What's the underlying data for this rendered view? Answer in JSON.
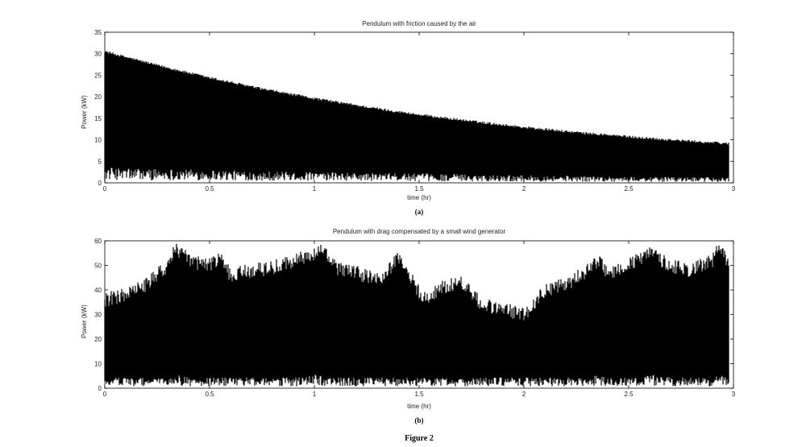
{
  "figure_caption": "Figure 2",
  "chart_data": [
    {
      "type": "line",
      "panel": "(a)",
      "title": "Pendulum with friction caused by the air",
      "xlabel": "time (hr)",
      "ylabel": "Power (kW)",
      "xlim": [
        0,
        3
      ],
      "ylim": [
        0,
        35
      ],
      "xticks": [
        0,
        0.5,
        1,
        1.5,
        2,
        2.5,
        3
      ],
      "xtick_labels": [
        "0",
        "0.5",
        "1",
        "1.5",
        "2",
        "2.5",
        "3"
      ],
      "yticks": [
        0,
        5,
        10,
        15,
        20,
        25,
        30,
        35
      ],
      "ytick_labels": [
        "0",
        "5",
        "10",
        "15",
        "20",
        "25",
        "30",
        "35"
      ],
      "series": [
        {
          "color": "#000000",
          "x": [
            0,
            0.25,
            0.5,
            0.75,
            1,
            1.25,
            1.5,
            1.75,
            2,
            2.25,
            2.5,
            2.75,
            2.98
          ],
          "upper": [
            30.2,
            27.0,
            24.1,
            21.5,
            19.3,
            17.3,
            15.5,
            14.0,
            12.6,
            11.4,
            10.4,
            9.5,
            8.8
          ],
          "lower_max": [
            3.3,
            3.0,
            2.8,
            2.5,
            2.3,
            2.1,
            2.0,
            1.8,
            1.6,
            1.5,
            1.3,
            1.2,
            1.1
          ]
        }
      ]
    },
    {
      "type": "line",
      "panel": "(b)",
      "title": "Pendulum with drag compensated by a small wind generator",
      "xlabel": "time (hr)",
      "ylabel": "Power (kW)",
      "xlim": [
        0,
        3
      ],
      "ylim": [
        0,
        60
      ],
      "xticks": [
        0,
        0.5,
        1,
        1.5,
        2,
        2.5,
        3
      ],
      "xtick_labels": [
        "0",
        "0.5",
        "1",
        "1.5",
        "2",
        "2.5",
        "3"
      ],
      "yticks": [
        0,
        10,
        20,
        30,
        40,
        50,
        60
      ],
      "ytick_labels": [
        "0",
        "10",
        "20",
        "30",
        "40",
        "50",
        "60"
      ],
      "series": [
        {
          "color": "#000000",
          "x": [
            0,
            0.1,
            0.2,
            0.3,
            0.34,
            0.4,
            0.5,
            0.55,
            0.6,
            0.7,
            0.8,
            0.9,
            1.0,
            1.03,
            1.1,
            1.2,
            1.3,
            1.35,
            1.4,
            1.45,
            1.5,
            1.55,
            1.6,
            1.7,
            1.8,
            1.9,
            2.0,
            2.1,
            2.2,
            2.3,
            2.35,
            2.4,
            2.5,
            2.6,
            2.7,
            2.8,
            2.9,
            2.94,
            2.98
          ],
          "upper": [
            36,
            38,
            42,
            50,
            57,
            52,
            50,
            53,
            46,
            48,
            49,
            52,
            54,
            57,
            49,
            47,
            44,
            47,
            54,
            46,
            39,
            36,
            41,
            43,
            34,
            32,
            30,
            40,
            42,
            48,
            52,
            47,
            50,
            55,
            50,
            48,
            52,
            58,
            50
          ],
          "lower_max": [
            4,
            4,
            4,
            4,
            5,
            4,
            4,
            4,
            4,
            4,
            4,
            4,
            5,
            5,
            4,
            4,
            4,
            4,
            4,
            4,
            4,
            4,
            4,
            4,
            4,
            4,
            4,
            4,
            4,
            4,
            5,
            4,
            4,
            5,
            4,
            4,
            4,
            5,
            4
          ]
        }
      ]
    }
  ]
}
